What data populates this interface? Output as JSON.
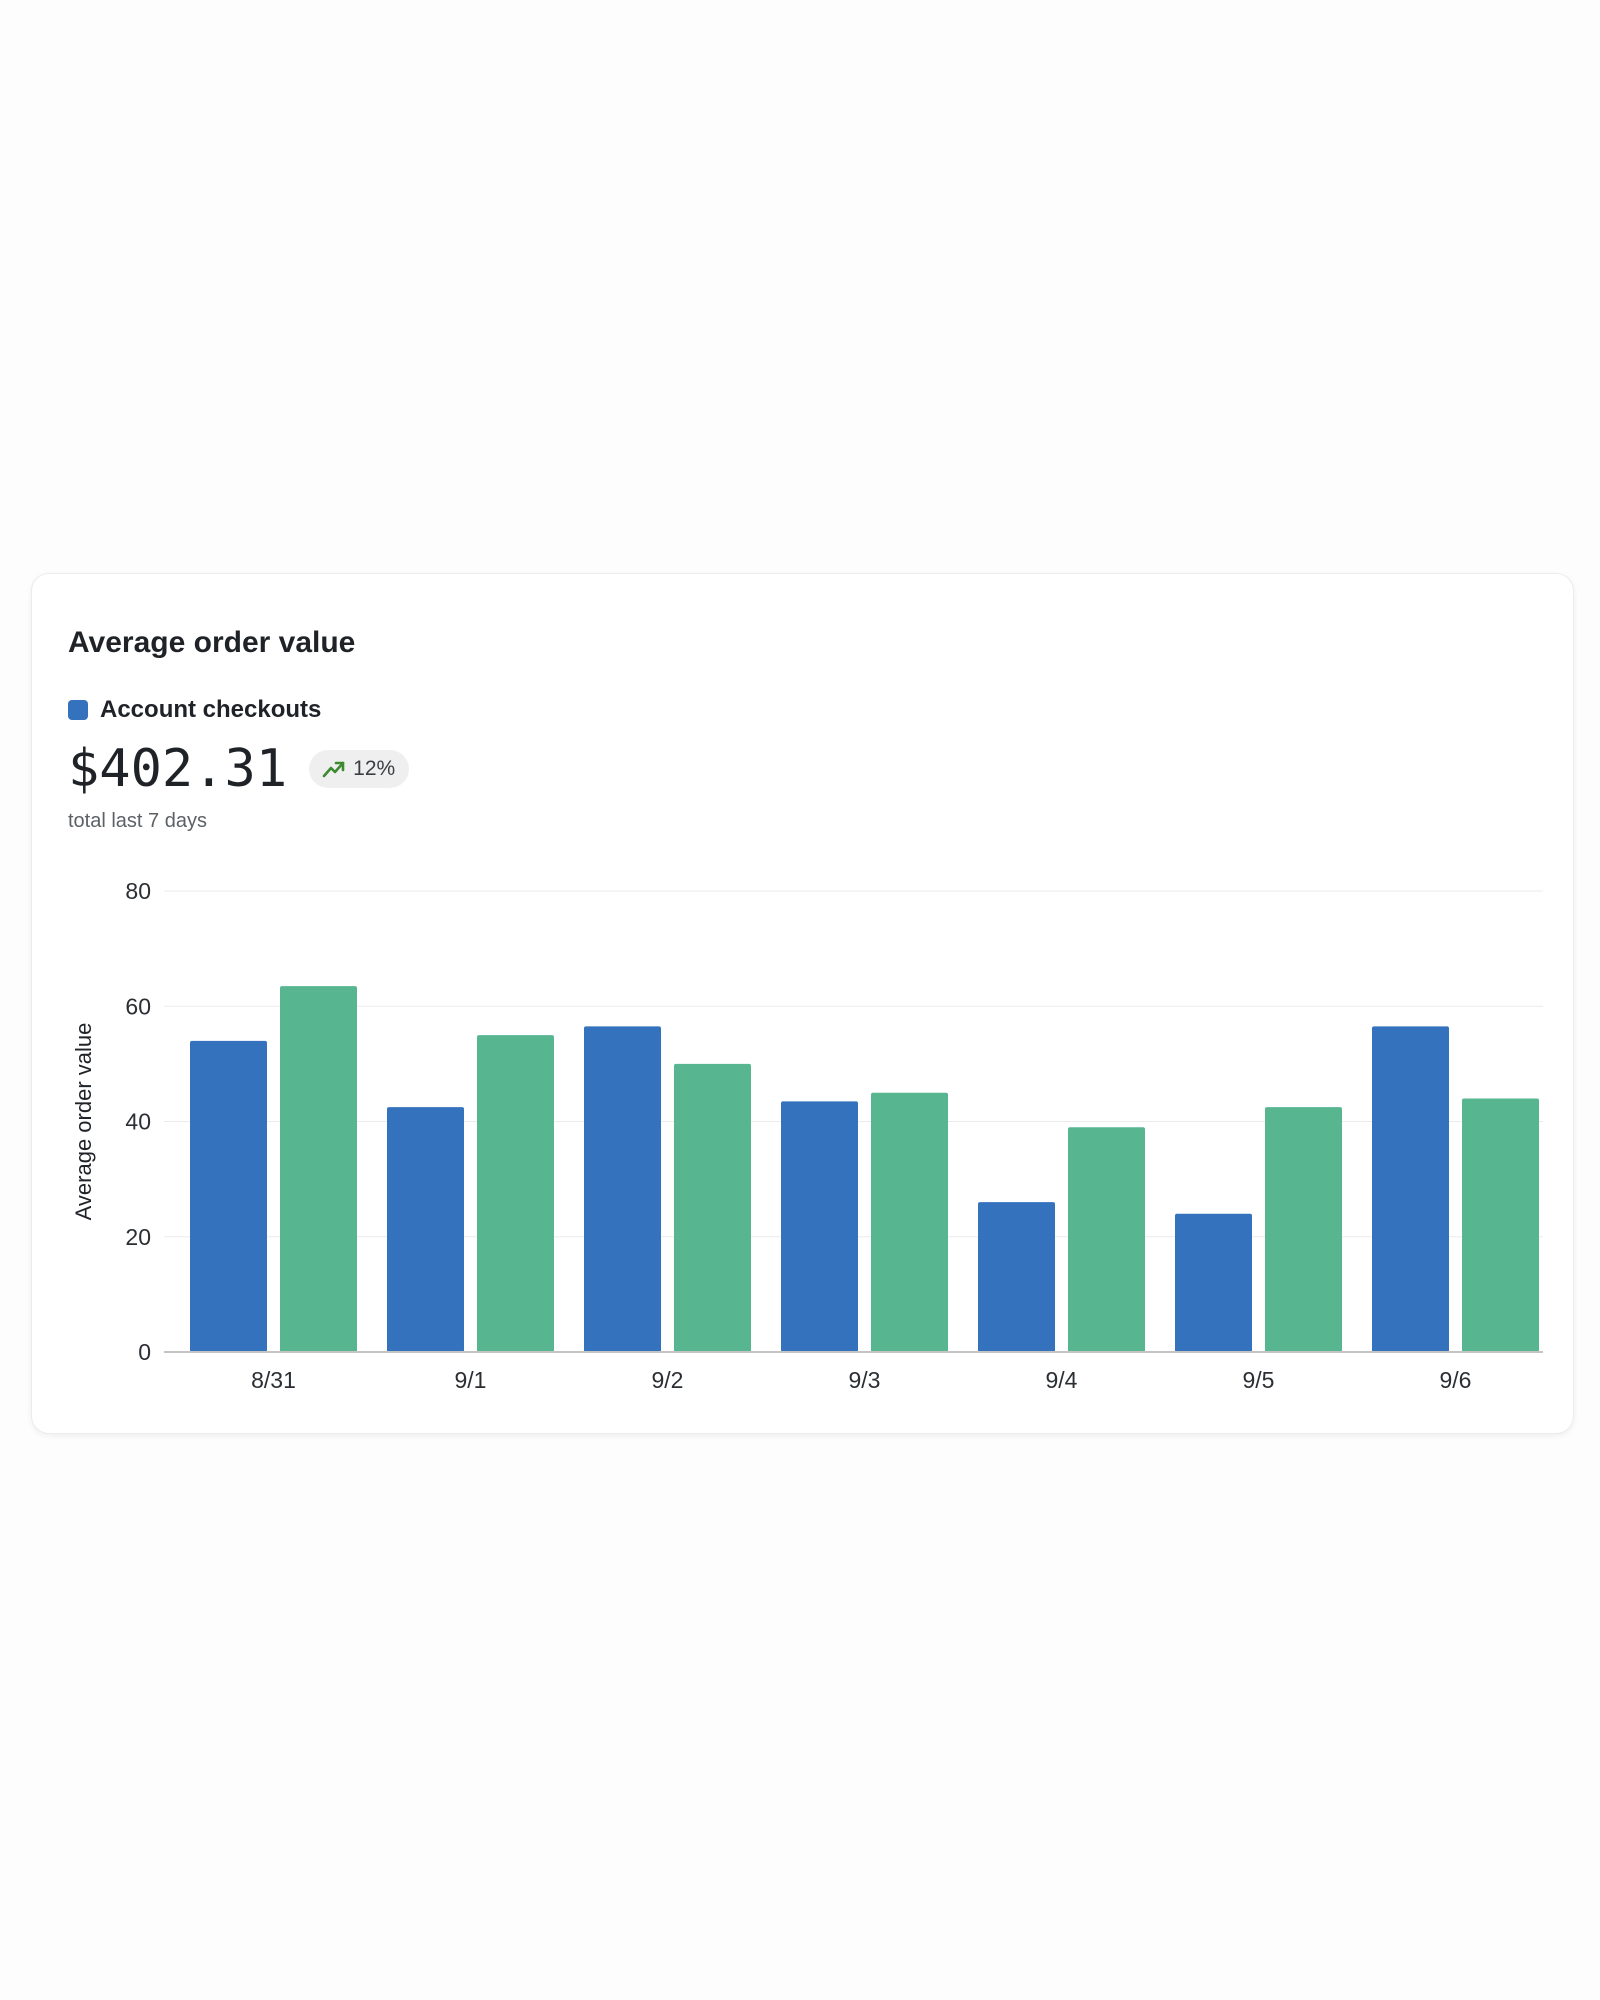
{
  "card": {
    "title": "Average order value",
    "legend": {
      "label": "Account checkouts",
      "color": "#3472bd"
    },
    "metric": {
      "value": "$402.31",
      "trend": "12%",
      "trend_icon": "trending-up-icon",
      "trend_color": "#3d8a2f",
      "caption": "total last 7 days"
    }
  },
  "chart_data": {
    "type": "bar",
    "title": "",
    "xlabel": "",
    "ylabel": "Average order value",
    "categories": [
      "8/31",
      "9/1",
      "9/2",
      "9/3",
      "9/4",
      "9/5",
      "9/6"
    ],
    "ylim": [
      0,
      80
    ],
    "yticks": [
      0,
      20,
      40,
      60,
      80
    ],
    "grid": true,
    "series": [
      {
        "values": [
          54,
          42.5,
          56.5,
          43.5,
          26,
          24,
          56.5
        ],
        "color": "#3472bd"
      },
      {
        "values": [
          63.5,
          55,
          50,
          45,
          39,
          42.5,
          44
        ],
        "color": "#57b690"
      }
    ]
  }
}
